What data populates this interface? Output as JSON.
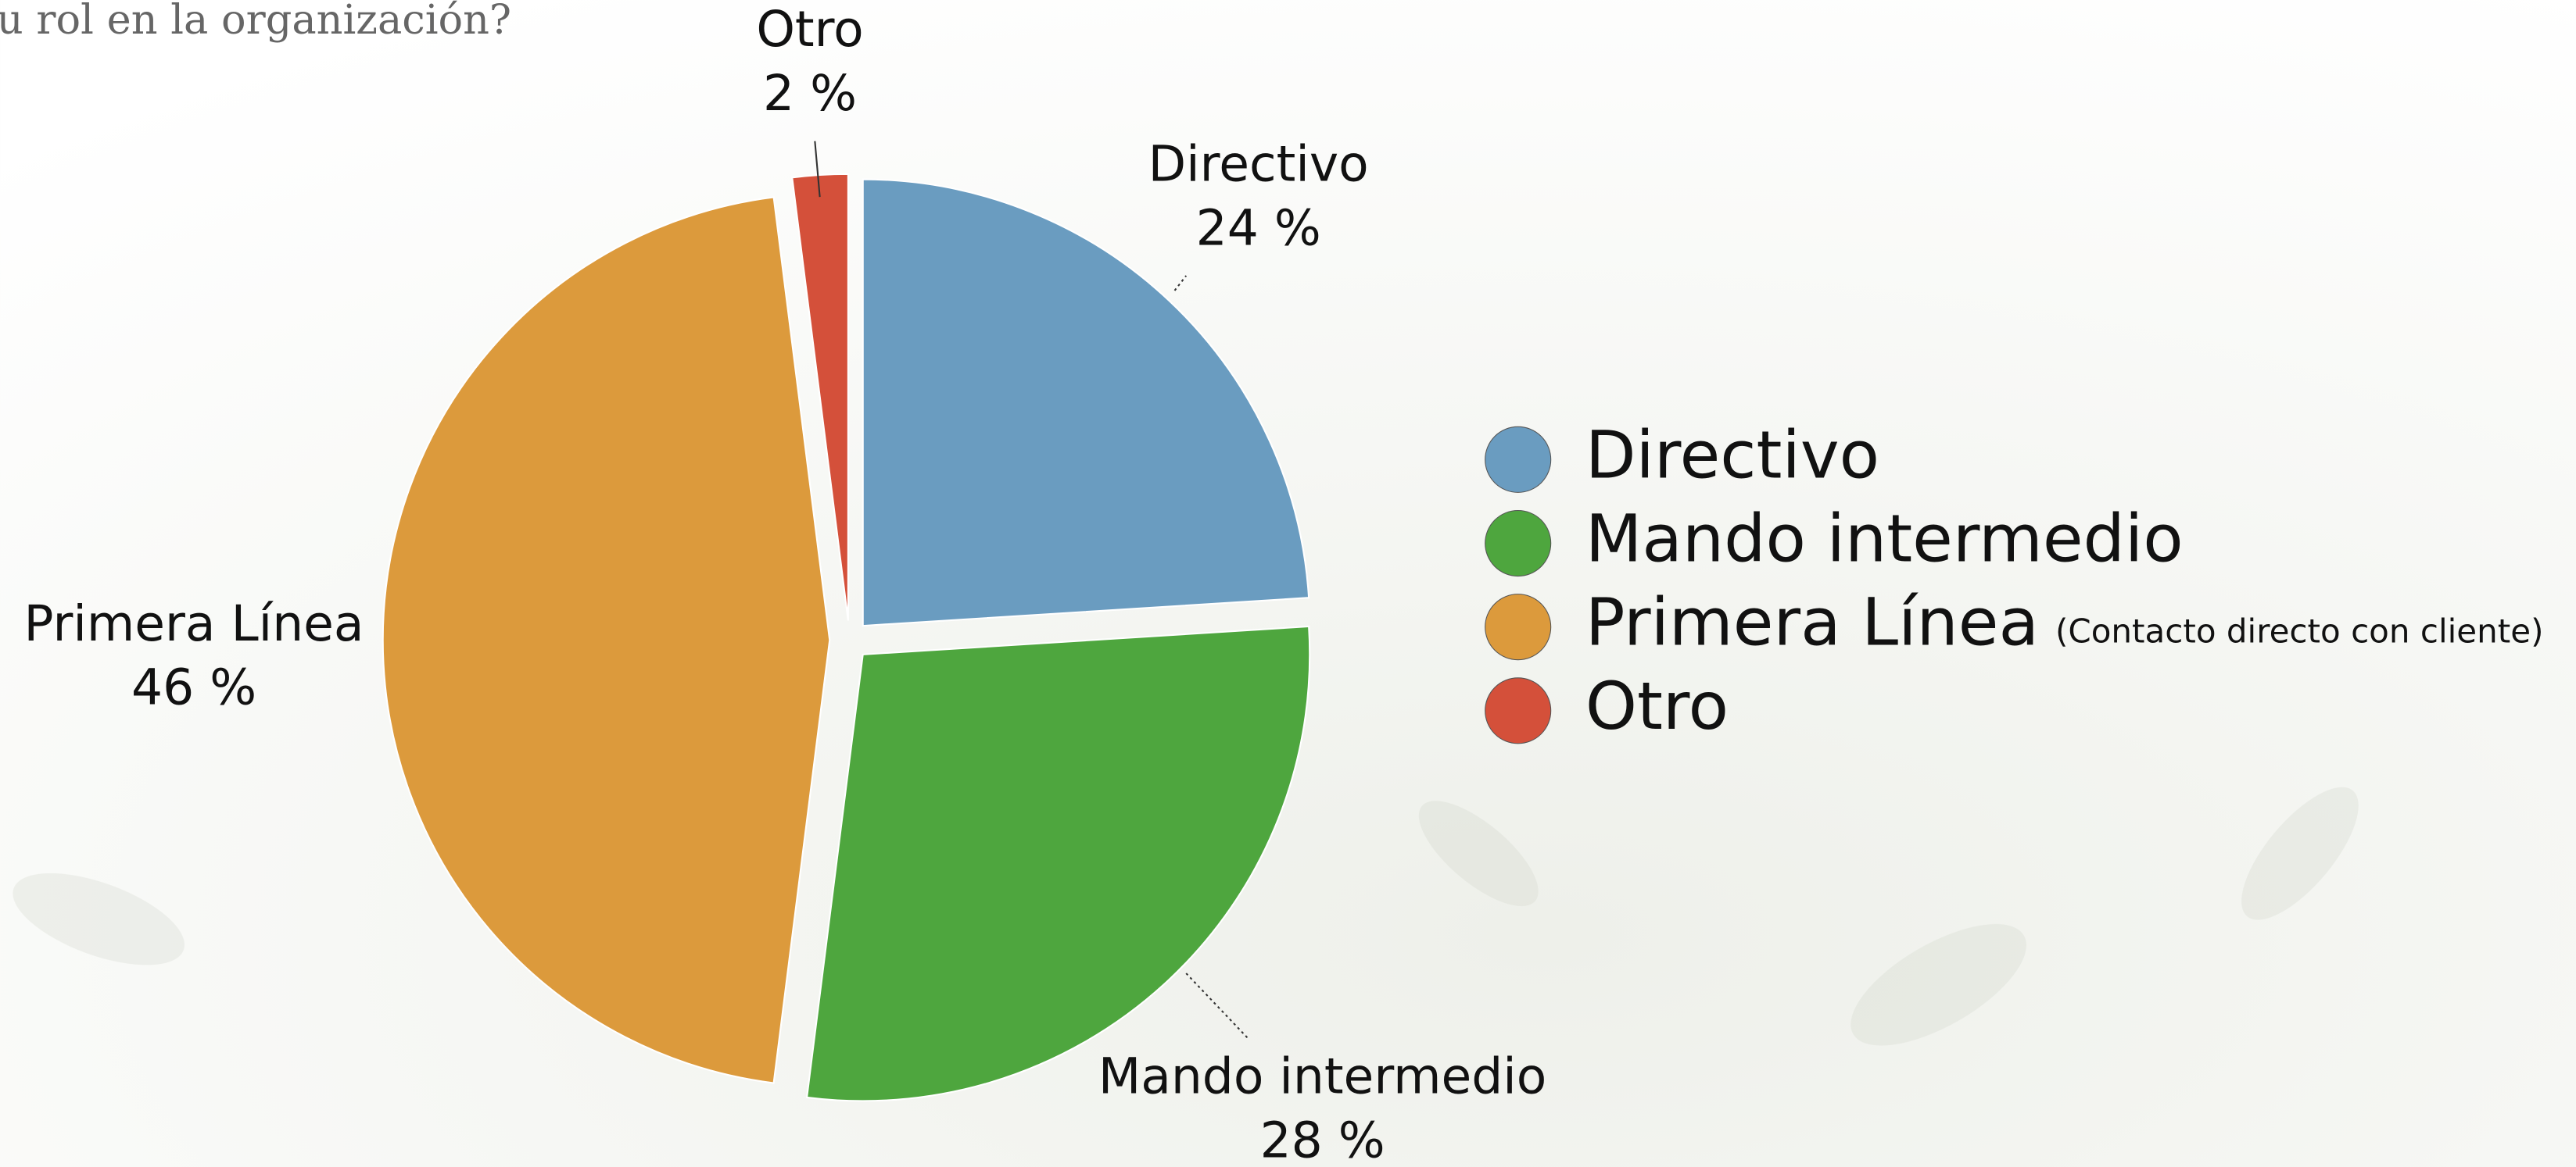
{
  "chart_data": {
    "type": "pie",
    "title": "u rol en la organización?",
    "categories": [
      "Directivo",
      "Mando intermedio",
      "Primera Línea",
      "Otro"
    ],
    "values": [
      24,
      28,
      46,
      2
    ],
    "value_labels": [
      "24 %",
      "28 %",
      "46 %",
      "2 %"
    ],
    "colors": [
      "#6a9cc0",
      "#4ea63e",
      "#dc9a3c",
      "#d4503a"
    ],
    "legend_note": "(Contacto directo con cliente)",
    "legend_note_category": 2
  }
}
